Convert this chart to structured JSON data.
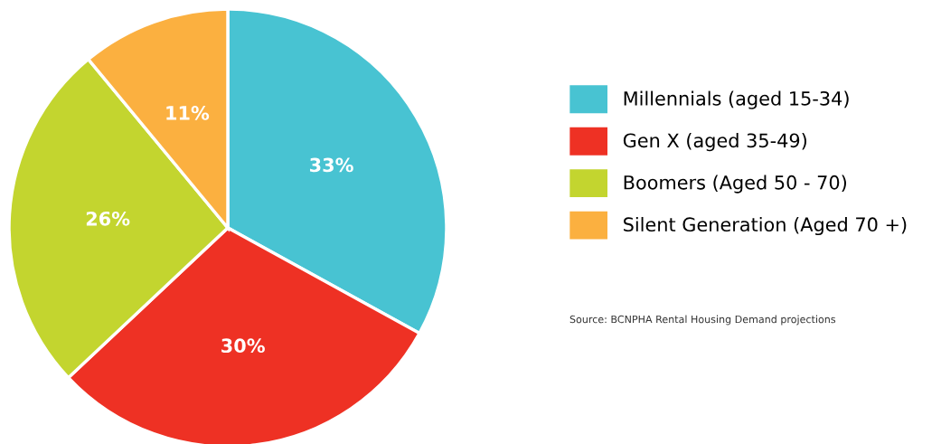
{
  "chart_data": {
    "type": "pie",
    "categories": [
      "Millennials (aged 15-34)",
      "Gen X (aged 35-49)",
      "Boomers (Aged 50 - 70)",
      "Silent Generation (Aged 70 +)"
    ],
    "values": [
      33,
      30,
      26,
      11
    ],
    "colors": [
      "#48c3d2",
      "#ee3124",
      "#c3d52f",
      "#fbb040"
    ],
    "value_labels": [
      "33%",
      "30%",
      "26%",
      "11%"
    ],
    "legend": "right",
    "annotations": [
      "Source: BCNPHA Rental Housing Demand projections"
    ]
  }
}
